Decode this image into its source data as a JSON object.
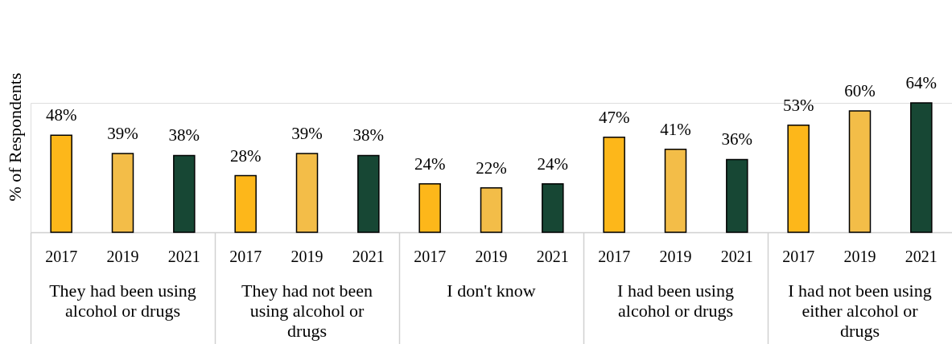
{
  "chart_data": {
    "type": "bar",
    "ylabel": "% of Respondents",
    "legend": false,
    "categories": [
      "They had been using alcohol or drugs",
      "They had not been using alcohol or drugs",
      "I don't know",
      "I had been using alcohol or drugs",
      "I had not been using either alcohol or drugs"
    ],
    "series": [
      {
        "name": "2017",
        "color": "#fdb71a",
        "values": [
          48,
          28,
          24,
          47,
          53
        ],
        "value_labels": [
          "48%",
          "28%",
          "24%",
          "47%",
          "53%"
        ]
      },
      {
        "name": "2019",
        "color": "#f3bd48",
        "values": [
          39,
          39,
          22,
          41,
          60
        ],
        "value_labels": [
          "39%",
          "39%",
          "22%",
          "41%",
          "60%"
        ]
      },
      {
        "name": "2021",
        "color": "#174734",
        "values": [
          38,
          38,
          24,
          36,
          64
        ],
        "value_labels": [
          "38%",
          "38%",
          "24%",
          "36%",
          "64%"
        ]
      }
    ]
  }
}
